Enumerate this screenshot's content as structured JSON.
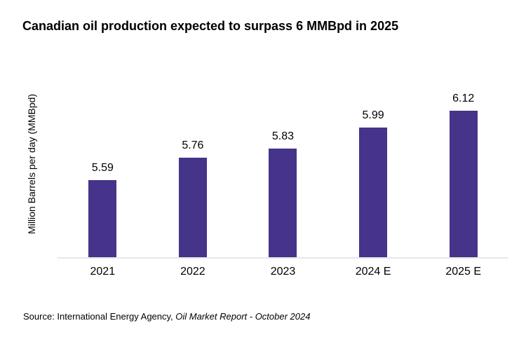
{
  "chart_data": {
    "type": "bar",
    "title": "Canadian oil production expected to surpass 6 MMBpd in 2025",
    "categories": [
      "2021",
      "2022",
      "2023",
      "2024 E",
      "2025 E"
    ],
    "values": [
      5.59,
      5.76,
      5.83,
      5.99,
      6.12
    ],
    "labels": [
      "5.59",
      "5.76",
      "5.83",
      "5.99",
      "6.12"
    ],
    "xlabel": "",
    "ylabel": "Million Barrels per day (MMBpd)",
    "ylim": [
      5.0,
      6.43
    ],
    "grid": false,
    "legend": false,
    "bar_color": "#46338a",
    "axis_line_color": "#e7e7e7",
    "text_color": "#000000"
  },
  "source": {
    "prefix": "Source: International Energy Agency, ",
    "italic": "Oil Market Report - October 2024"
  }
}
